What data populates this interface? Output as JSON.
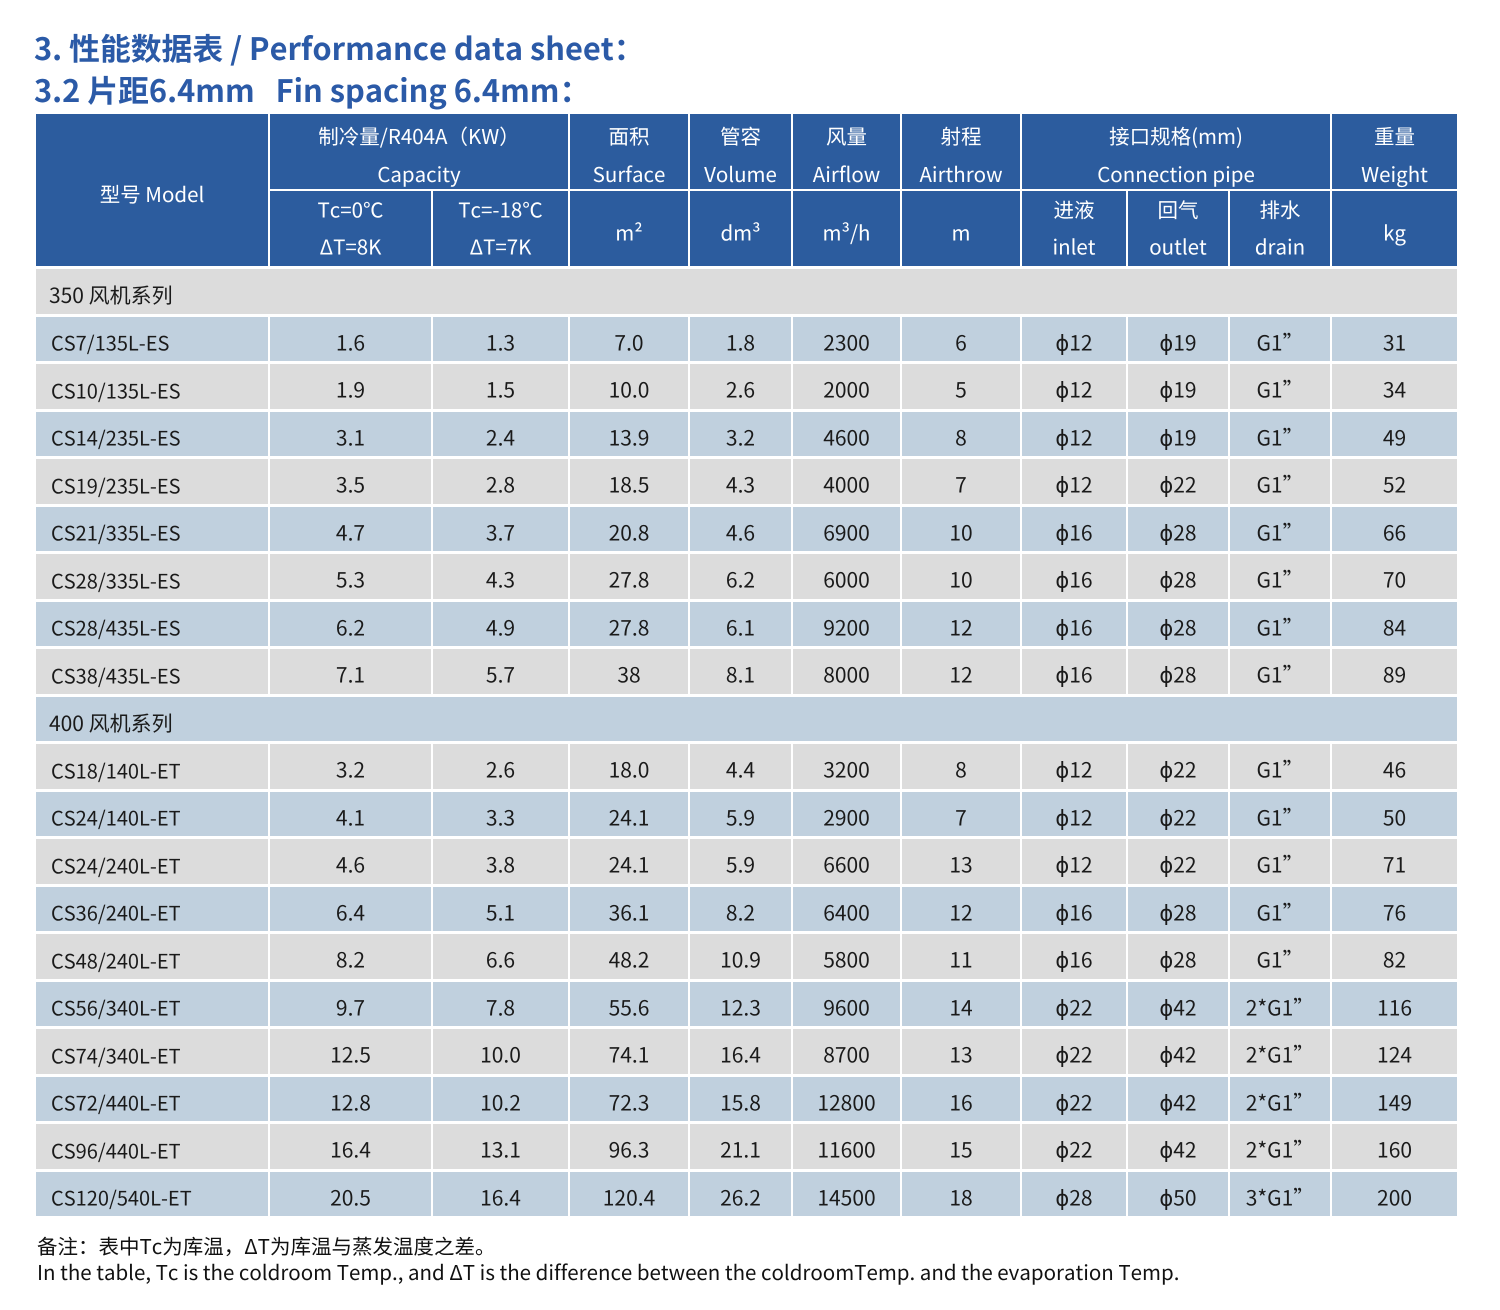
{
  "page": {
    "title_line1": "3. 性能数据表 / Performance data sheet：",
    "title_line2": "3.2 片距6.4mm   Fin spacing 6.4mm："
  },
  "table": {
    "header": {
      "model": "型号 Model",
      "capacity_zh": "制冷量/R404A（KW）",
      "capacity_en": "Capacity",
      "tc0_line1": "Tc=0℃",
      "tc0_line2": "ΔT=8K",
      "tc18_line1": "Tc=-18℃",
      "tc18_line2": "ΔT=7K",
      "surface_zh": "面积",
      "surface_en": "Surface",
      "surface_unit": "m²",
      "volume_zh": "管容",
      "volume_en": "Volume",
      "volume_unit": "dm³",
      "airflow_zh": "风量",
      "airflow_en": "Airflow",
      "airflow_unit": "m³/h",
      "airthrow_zh": "射程",
      "airthrow_en": "Airthrow",
      "airthrow_unit": "m",
      "pipe_zh": "接口规格(mm)",
      "pipe_en": "Connection pipe",
      "inlet_zh": "进液",
      "inlet_en": "inlet",
      "outlet_zh": "回气",
      "outlet_en": "outlet",
      "drain_zh": "排水",
      "drain_en": "drain",
      "weight_zh": "重量",
      "weight_en": "Weight",
      "weight_unit": "kg"
    },
    "sections": [
      {
        "label": "350 风机系列",
        "rows": [
          {
            "model": "CS7/135L-ES",
            "values": [
              "1.6",
              "1.3",
              "7.0",
              "1.8",
              "2300",
              "6",
              "ϕ12",
              "ϕ19",
              "G1”",
              "31"
            ]
          },
          {
            "model": "CS10/135L-ES",
            "values": [
              "1.9",
              "1.5",
              "10.0",
              "2.6",
              "2000",
              "5",
              "ϕ12",
              "ϕ19",
              "G1”",
              "34"
            ]
          },
          {
            "model": "CS14/235L-ES",
            "values": [
              "3.1",
              "2.4",
              "13.9",
              "3.2",
              "4600",
              "8",
              "ϕ12",
              "ϕ19",
              "G1”",
              "49"
            ]
          },
          {
            "model": "CS19/235L-ES",
            "values": [
              "3.5",
              "2.8",
              "18.5",
              "4.3",
              "4000",
              "7",
              "ϕ12",
              "ϕ22",
              "G1”",
              "52"
            ]
          },
          {
            "model": "CS21/335L-ES",
            "values": [
              "4.7",
              "3.7",
              "20.8",
              "4.6",
              "6900",
              "10",
              "ϕ16",
              "ϕ28",
              "G1”",
              "66"
            ]
          },
          {
            "model": "CS28/335L-ES",
            "values": [
              "5.3",
              "4.3",
              "27.8",
              "6.2",
              "6000",
              "10",
              "ϕ16",
              "ϕ28",
              "G1”",
              "70"
            ]
          },
          {
            "model": "CS28/435L-ES",
            "values": [
              "6.2",
              "4.9",
              "27.8",
              "6.1",
              "9200",
              "12",
              "ϕ16",
              "ϕ28",
              "G1”",
              "84"
            ]
          },
          {
            "model": "CS38/435L-ES",
            "values": [
              "7.1",
              "5.7",
              "38",
              "8.1",
              "8000",
              "12",
              "ϕ16",
              "ϕ28",
              "G1”",
              "89"
            ]
          }
        ]
      },
      {
        "label": "400 风机系列",
        "rows": [
          {
            "model": "CS18/140L-ET",
            "values": [
              "3.2",
              "2.6",
              "18.0",
              "4.4",
              "3200",
              "8",
              "ϕ12",
              "ϕ22",
              "G1”",
              "46"
            ]
          },
          {
            "model": "CS24/140L-ET",
            "values": [
              "4.1",
              "3.3",
              "24.1",
              "5.9",
              "2900",
              "7",
              "ϕ12",
              "ϕ22",
              "G1”",
              "50"
            ]
          },
          {
            "model": "CS24/240L-ET",
            "values": [
              "4.6",
              "3.8",
              "24.1",
              "5.9",
              "6600",
              "13",
              "ϕ12",
              "ϕ22",
              "G1”",
              "71"
            ]
          },
          {
            "model": "CS36/240L-ET",
            "values": [
              "6.4",
              "5.1",
              "36.1",
              "8.2",
              "6400",
              "12",
              "ϕ16",
              "ϕ28",
              "G1”",
              "76"
            ]
          },
          {
            "model": "CS48/240L-ET",
            "values": [
              "8.2",
              "6.6",
              "48.2",
              "10.9",
              "5800",
              "11",
              "ϕ16",
              "ϕ28",
              "G1”",
              "82"
            ]
          },
          {
            "model": "CS56/340L-ET",
            "values": [
              "9.7",
              "7.8",
              "55.6",
              "12.3",
              "9600",
              "14",
              "ϕ22",
              "ϕ42",
              "2*G1”",
              "116"
            ]
          },
          {
            "model": "CS74/340L-ET",
            "values": [
              "12.5",
              "10.0",
              "74.1",
              "16.4",
              "8700",
              "13",
              "ϕ22",
              "ϕ42",
              "2*G1”",
              "124"
            ]
          },
          {
            "model": "CS72/440L-ET",
            "values": [
              "12.8",
              "10.2",
              "72.3",
              "15.8",
              "12800",
              "16",
              "ϕ22",
              "ϕ42",
              "2*G1”",
              "149"
            ]
          },
          {
            "model": "CS96/440L-ET",
            "values": [
              "16.4",
              "13.1",
              "96.3",
              "21.1",
              "11600",
              "15",
              "ϕ22",
              "ϕ42",
              "2*G1”",
              "160"
            ]
          },
          {
            "model": "CS120/540L-ET",
            "values": [
              "20.5",
              "16.4",
              "120.4",
              "26.2",
              "14500",
              "18",
              "ϕ28",
              "ϕ50",
              "3*G1”",
              "200"
            ]
          }
        ]
      }
    ]
  },
  "footnote": {
    "zh": "备注：表中Tc为库温，ΔT为库温与蒸发温度之差。",
    "en": "In the table, Tc is the coldroom Temp., and ΔT is the difference between the coldroomTemp. and the evaporation Temp."
  },
  "colors": {
    "header_bg": "#2c5c9e",
    "row_blue": "#c0d0de",
    "row_gray": "#dcdcdc",
    "title_blue": "#2b5aa7",
    "text_dark": "#1a1a1a"
  }
}
